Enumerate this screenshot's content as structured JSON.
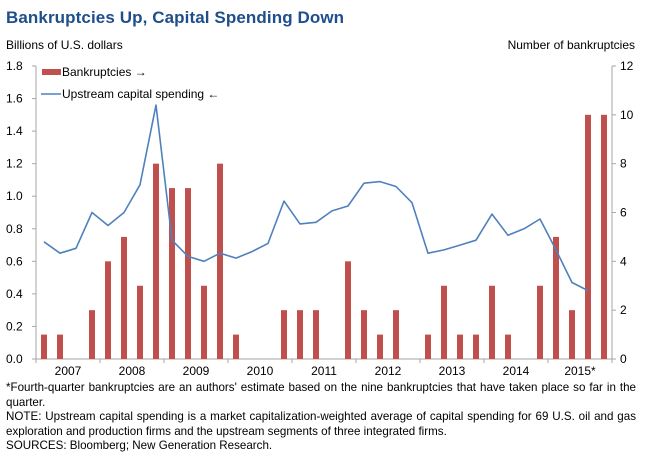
{
  "chart_data": {
    "type": "bar+line",
    "title": "Bankruptcies Up, Capital Spending Down",
    "ylabel_left": "Billions of U.S. dollars",
    "ylabel_right": "Number of bankruptcies",
    "xlabel": "",
    "ylim_left": [
      0,
      1.8
    ],
    "yticks_left": [
      "0.0",
      "0.2",
      "0.4",
      "0.6",
      "0.8",
      "1.0",
      "1.2",
      "1.4",
      "1.6",
      "1.8"
    ],
    "ylim_right": [
      0,
      12
    ],
    "yticks_right": [
      "0",
      "2",
      "4",
      "6",
      "8",
      "10",
      "12"
    ],
    "years": [
      "2007",
      "2008",
      "2009",
      "2010",
      "2011",
      "2012",
      "2013",
      "2014",
      "2015*"
    ],
    "quarters_per_year": 4,
    "grid": false,
    "legend_position": "top-left",
    "legend": [
      {
        "label": "Bankruptcies →",
        "type": "bar",
        "color": "#c0504d"
      },
      {
        "label": "Upstream capital spending ←",
        "type": "line",
        "color": "#4f81bd"
      }
    ],
    "series": [
      {
        "name": "Bankruptcies",
        "axis": "right",
        "type": "bar",
        "color": "#c0504d",
        "values": [
          1,
          1,
          0,
          2,
          4,
          5,
          3,
          8,
          7,
          7,
          3,
          8,
          1,
          0,
          0,
          2,
          2,
          2,
          0,
          4,
          2,
          1,
          2,
          0,
          1,
          3,
          1,
          1,
          3,
          1,
          0,
          3,
          5,
          2,
          10,
          10
        ]
      },
      {
        "name": "Upstream capital spending",
        "axis": "left",
        "type": "line",
        "color": "#4f81bd",
        "values": [
          0.72,
          0.65,
          0.68,
          0.9,
          0.82,
          0.9,
          1.07,
          1.56,
          0.73,
          0.63,
          0.6,
          0.65,
          0.62,
          0.66,
          0.71,
          0.97,
          0.83,
          0.84,
          0.91,
          0.94,
          1.08,
          1.09,
          1.06,
          0.96,
          0.65,
          0.67,
          0.7,
          0.73,
          0.89,
          0.76,
          0.8,
          0.86,
          0.67,
          0.47,
          0.42,
          null
        ]
      }
    ]
  },
  "notes": {
    "footnote": "*Fourth-quarter bankruptcies are an authors' estimate based on the nine bankruptcies that have taken place so far in the quarter.",
    "note": "NOTE: Upstream capital spending is a market capitalization-weighted average of capital spending for 69 U.S. oil and gas exploration and production firms and the upstream segments of three integrated firms.",
    "sources": "SOURCES: Bloomberg; New Generation Research."
  }
}
